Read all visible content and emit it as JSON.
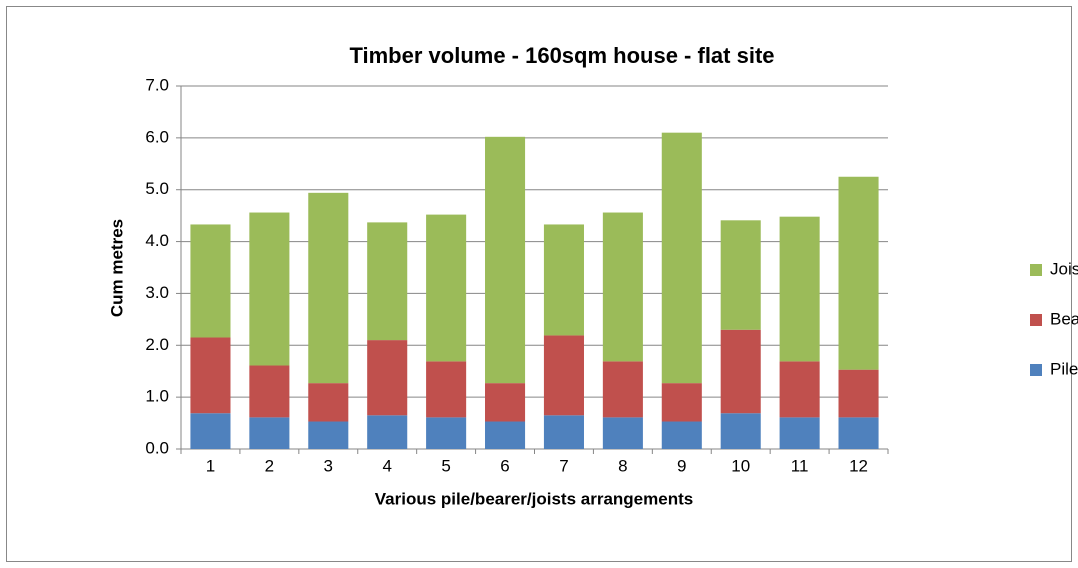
{
  "chart_data": {
    "type": "stacked_bar",
    "title": "Timber volume - 160sqm house     -     flat site",
    "x_label": "Various pile/bearer/joists arrangements",
    "y_label": "Cum metres",
    "categories": [
      "1",
      "2",
      "3",
      "4",
      "5",
      "6",
      "7",
      "8",
      "9",
      "10",
      "11",
      "12"
    ],
    "series": [
      {
        "name": "Piles",
        "color": "#4f81bd",
        "values": [
          0.69,
          0.61,
          0.53,
          0.65,
          0.61,
          0.53,
          0.65,
          0.61,
          0.53,
          0.69,
          0.61,
          0.61
        ]
      },
      {
        "name": "Bearers",
        "color": "#c0504d",
        "values": [
          1.46,
          1.0,
          0.74,
          1.45,
          1.08,
          0.74,
          1.54,
          1.08,
          0.74,
          1.61,
          1.08,
          0.92
        ]
      },
      {
        "name": "Joists",
        "color": "#9bbb59",
        "values": [
          2.18,
          2.95,
          3.67,
          2.27,
          2.83,
          4.75,
          2.14,
          2.87,
          4.83,
          2.11,
          2.79,
          3.72
        ]
      }
    ],
    "ylim": [
      0,
      7
    ],
    "yticks": [
      {
        "value": 0,
        "label": "0.0"
      },
      {
        "value": 1,
        "label": "1.0"
      },
      {
        "value": 2,
        "label": "2.0"
      },
      {
        "value": 3,
        "label": "3.0"
      },
      {
        "value": 4,
        "label": "4.0"
      },
      {
        "value": 5,
        "label": "5.0"
      },
      {
        "value": 6,
        "label": "6.0"
      },
      {
        "value": 7,
        "label": "7.0"
      }
    ],
    "grid": true,
    "legend": "right"
  }
}
